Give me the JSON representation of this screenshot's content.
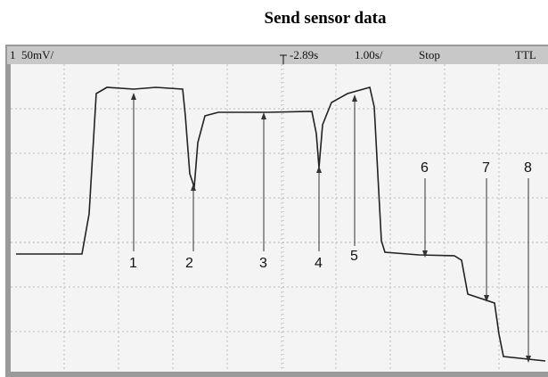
{
  "title": "Send sensor data",
  "status_bar": {
    "channel": "1",
    "scale": "50mV/",
    "delay": "-2.89s",
    "timebase": "1.00s/",
    "mode": "Stop",
    "trigger": "TTL"
  },
  "markers": [
    "1",
    "2",
    "3",
    "4",
    "5",
    "6",
    "7",
    "8"
  ]
}
